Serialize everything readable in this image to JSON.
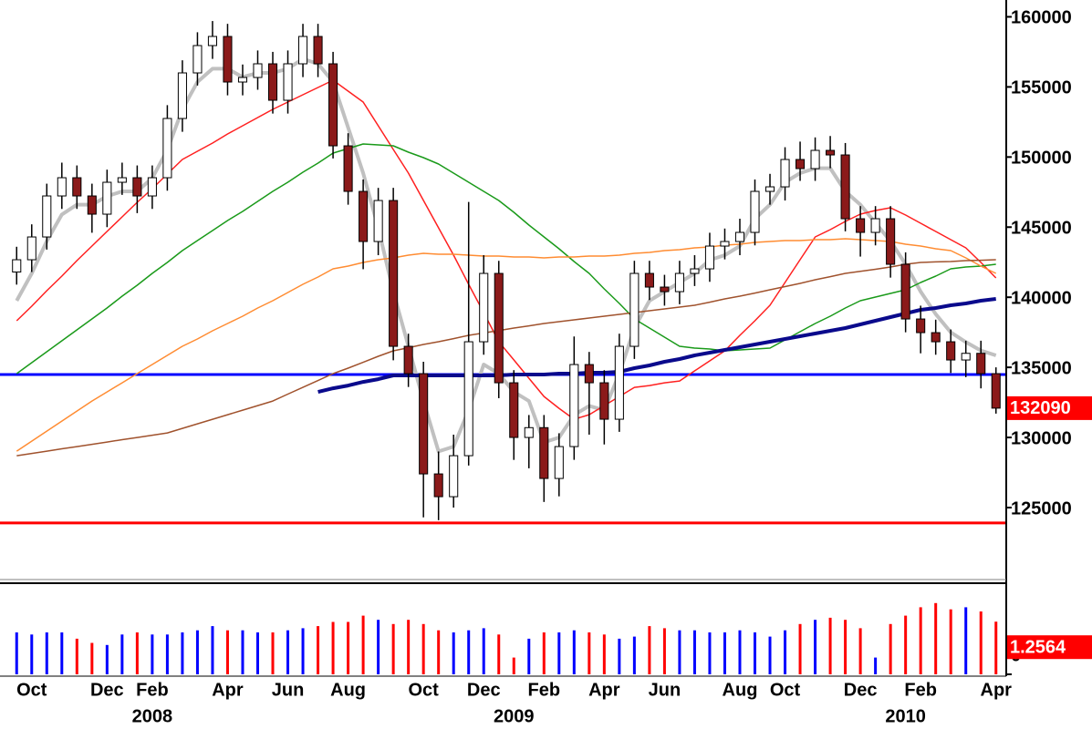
{
  "chart_data": {
    "type": "candlestick",
    "categories": [
      null,
      "Oct",
      null,
      null,
      null,
      null,
      "Dec",
      null,
      null,
      "Feb",
      null,
      null,
      null,
      null,
      "Apr",
      null,
      null,
      null,
      "Jun",
      null,
      null,
      null,
      "Aug",
      null,
      null,
      null,
      null,
      "Oct",
      null,
      null,
      null,
      "Dec",
      null,
      null,
      null,
      "Feb",
      null,
      null,
      null,
      "Apr",
      null,
      null,
      null,
      "Jun",
      null,
      null,
      null,
      null,
      "Aug",
      null,
      null,
      "Oct",
      null,
      null,
      null,
      null,
      "Dec",
      null,
      null,
      null,
      "Feb",
      null,
      null,
      null,
      null,
      "Apr"
    ],
    "year_labels": [
      null,
      null,
      null,
      null,
      null,
      null,
      null,
      null,
      null,
      "2008",
      null,
      null,
      null,
      null,
      null,
      null,
      null,
      null,
      null,
      null,
      null,
      null,
      null,
      null,
      null,
      null,
      null,
      null,
      null,
      null,
      null,
      null,
      null,
      "2009",
      null,
      null,
      null,
      null,
      null,
      null,
      null,
      null,
      null,
      null,
      null,
      null,
      null,
      null,
      null,
      null,
      null,
      null,
      null,
      null,
      null,
      null,
      null,
      null,
      null,
      "2010",
      null,
      null,
      null,
      null,
      null,
      null
    ],
    "open": [
      141800,
      142675,
      144300,
      147225,
      148525,
      147225,
      145925,
      148200,
      148525,
      147225,
      148525,
      152750,
      156000,
      157950,
      158600,
      155350,
      155675,
      156650,
      154050,
      156650,
      158600,
      156650,
      150800,
      147550,
      143975,
      146900,
      136500,
      134550,
      127400,
      125775,
      128700,
      136825,
      141700,
      133900,
      130000,
      130700,
      127075,
      129350,
      135200,
      133900,
      131300,
      136500,
      141700,
      140725,
      140400,
      141700,
      142025,
      143650,
      143975,
      144625,
      147550,
      147875,
      149825,
      149175,
      150475,
      150150,
      145600,
      144625,
      145600,
      142350,
      138450,
      137475,
      136825,
      135525,
      136000,
      134550
    ],
    "high": [
      143600,
      145200,
      148100,
      149600,
      149400,
      148100,
      149100,
      149600,
      149400,
      149400,
      153700,
      156900,
      158900,
      159700,
      159500,
      156600,
      157600,
      157500,
      157600,
      159500,
      159500,
      157500,
      151700,
      148400,
      147800,
      147800,
      137400,
      135400,
      129000,
      130200,
      146800,
      143000,
      142600,
      134800,
      131600,
      131600,
      130300,
      137200,
      136100,
      134800,
      137400,
      142600,
      142600,
      141600,
      142600,
      143000,
      144600,
      144900,
      145600,
      148400,
      148800,
      150700,
      151100,
      151400,
      151500,
      151000,
      146500,
      146500,
      146500,
      143200,
      139400,
      138400,
      137700,
      136900,
      136900,
      135000
    ],
    "low": [
      140900,
      141800,
      143400,
      146300,
      146300,
      144600,
      145000,
      147300,
      146000,
      146300,
      147600,
      151800,
      155100,
      157000,
      154400,
      154400,
      154800,
      153100,
      153100,
      155700,
      155700,
      149900,
      146600,
      142000,
      143000,
      135500,
      133600,
      124300,
      124100,
      125000,
      128000,
      135900,
      132800,
      128400,
      127800,
      125400,
      125800,
      128400,
      130200,
      129500,
      130400,
      135600,
      139800,
      139400,
      139500,
      140800,
      141100,
      142700,
      143000,
      143700,
      146600,
      146900,
      148300,
      148300,
      149200,
      144700,
      142900,
      143700,
      141400,
      137500,
      136000,
      135900,
      134600,
      134300,
      133500,
      131700
    ],
    "close": [
      142675,
      144300,
      147225,
      148525,
      147225,
      145925,
      148200,
      148525,
      147225,
      148525,
      152750,
      156000,
      157950,
      158600,
      155350,
      155675,
      156650,
      154050,
      156650,
      158600,
      156650,
      150800,
      147550,
      143975,
      146900,
      136500,
      134550,
      127400,
      125775,
      128700,
      136825,
      141700,
      133900,
      130000,
      130700,
      127075,
      129350,
      135200,
      133900,
      131300,
      136500,
      141700,
      140725,
      140400,
      141700,
      142025,
      143650,
      143975,
      144625,
      147550,
      147875,
      149825,
      149175,
      150475,
      150150,
      145600,
      144625,
      145600,
      142350,
      138450,
      137475,
      136825,
      135525,
      136000,
      134550,
      132090
    ],
    "up_color": "#ffffff",
    "down_color": "#8b1a1a",
    "wick_color": "#000000",
    "last_color": "#ff0000",
    "lines": [
      {
        "color": "#c0c0c0",
        "emphasis": true,
        "values": [
          139750,
          141700,
          144000,
          145900,
          146600,
          146600,
          147200,
          147550,
          147550,
          148500,
          150500,
          153400,
          155350,
          156300,
          156300,
          155700,
          156000,
          156000,
          156300,
          157000,
          156650,
          155350,
          152100,
          148850,
          144950,
          140400,
          136500,
          132600,
          129000,
          129350,
          131950,
          135200,
          134550,
          133250,
          132600,
          129650,
          130000,
          131600,
          132250,
          131950,
          134550,
          137800,
          139750,
          140400,
          141050,
          141700,
          142650,
          143000,
          143650,
          145600,
          146600,
          148200,
          148850,
          149200,
          149200,
          147550,
          146600,
          145300,
          144000,
          142350,
          140400,
          138800,
          137500,
          136800,
          136200,
          135850
        ]
      },
      {
        "color": "#ff2020",
        "emphasis": false,
        "values": [
          138320,
          139360,
          140465,
          141505,
          142610,
          143650,
          144690,
          145730,
          146770,
          147745,
          148785,
          149825,
          150410,
          150995,
          151645,
          152230,
          152815,
          153400,
          153920,
          154440,
          154960,
          155480,
          154700,
          153920,
          152230,
          150540,
          148850,
          146900,
          144950,
          143000,
          140920,
          138905,
          136825,
          135525,
          134225,
          132925,
          132080,
          131300,
          131625,
          132275,
          132925,
          133575,
          133705,
          133900,
          134030,
          134745,
          135460,
          136175,
          137280,
          138320,
          139425,
          141050,
          142675,
          144300,
          144820,
          145405,
          145925,
          146185,
          146380,
          145860,
          145275,
          144690,
          144105,
          143520,
          142480,
          141375
        ]
      },
      {
        "color": "#1a9a1a",
        "emphasis": false,
        "values": [
          134550,
          135330,
          136110,
          136890,
          137670,
          138450,
          139230,
          140075,
          140855,
          141700,
          142480,
          143325,
          144040,
          144755,
          145470,
          146120,
          146835,
          147550,
          148200,
          148915,
          149565,
          150280,
          150605,
          150930,
          150865,
          150800,
          150345,
          149955,
          149500,
          148850,
          148200,
          147550,
          146900,
          146055,
          145145,
          144300,
          143455,
          142545,
          141700,
          140595,
          139555,
          138450,
          137800,
          137150,
          136500,
          136370,
          136305,
          136175,
          136240,
          136305,
          136370,
          136955,
          137540,
          138125,
          138645,
          139230,
          139750,
          140010,
          140270,
          140530,
          141050,
          141505,
          142025,
          142155,
          142220,
          142350
        ]
      },
      {
        "color": "#ff8c32",
        "emphasis": false,
        "values": [
          129025,
          129740,
          130455,
          131170,
          131885,
          132600,
          133250,
          133900,
          134550,
          135200,
          135850,
          136500,
          137020,
          137605,
          138125,
          138645,
          139230,
          139750,
          140335,
          140920,
          141440,
          142025,
          142220,
          142480,
          142675,
          142805,
          143000,
          143130,
          143065,
          143065,
          143000,
          142935,
          142935,
          142870,
          142870,
          142805,
          142870,
          142870,
          142935,
          142935,
          143000,
          143130,
          143195,
          143325,
          143390,
          143520,
          143585,
          143715,
          143780,
          143910,
          143975,
          144040,
          144040,
          144105,
          144105,
          144170,
          144105,
          144040,
          143975,
          143780,
          143650,
          143455,
          143325,
          142805,
          142220,
          141700
        ]
      },
      {
        "color": "#a0522d",
        "emphasis": false,
        "values": [
          128700,
          128860,
          129025,
          129190,
          129350,
          129510,
          129675,
          129840,
          130000,
          130160,
          130325,
          130650,
          130975,
          131300,
          131625,
          131950,
          132275,
          132600,
          133090,
          133575,
          134060,
          134550,
          134940,
          135360,
          135785,
          136175,
          136400,
          136630,
          136825,
          137050,
          137280,
          137450,
          137620,
          137800,
          137960,
          138125,
          138255,
          138385,
          138515,
          138645,
          138775,
          138905,
          139035,
          139165,
          139295,
          139425,
          139650,
          139880,
          140075,
          140300,
          140530,
          140760,
          140985,
          141245,
          141470,
          141700,
          141855,
          141995,
          142155,
          142350,
          142480,
          142520,
          142545,
          142610,
          142640,
          142675
        ]
      },
      {
        "color": "#0a0a8c",
        "emphasis": true,
        "values": [
          null,
          null,
          null,
          null,
          null,
          null,
          null,
          null,
          null,
          null,
          null,
          null,
          null,
          null,
          null,
          null,
          null,
          null,
          null,
          null,
          133250,
          133510,
          133705,
          133965,
          134160,
          134420,
          134420,
          134420,
          134420,
          134420,
          134420,
          134420,
          134420,
          134485,
          134485,
          134485,
          134550,
          134550,
          134615,
          134615,
          134680,
          134940,
          135135,
          135395,
          135590,
          135850,
          136045,
          136240,
          136435,
          136630,
          136825,
          137020,
          137215,
          137410,
          137605,
          137800,
          138060,
          138320,
          138580,
          138840,
          139100,
          139230,
          139425,
          139555,
          139750,
          139880
        ]
      }
    ],
    "hlines": [
      {
        "value": 134485,
        "color": "#0000ff"
      },
      {
        "value": 123900,
        "color": "#ff0000"
      }
    ],
    "ylim": [
      119800,
      161200
    ],
    "yticks": [
      125000,
      130000,
      135000,
      140000,
      145000,
      150000,
      155000,
      160000
    ],
    "volume": {
      "values": [
        1.0,
        0.95,
        1.0,
        1.0,
        0.85,
        0.75,
        0.7,
        0.95,
        1.0,
        0.95,
        0.95,
        1.0,
        1.05,
        1.15,
        1.05,
        1.05,
        1.0,
        1.0,
        1.05,
        1.1,
        1.15,
        1.25,
        1.25,
        1.4,
        1.3,
        1.2,
        1.3,
        1.2,
        1.05,
        1.0,
        1.05,
        1.1,
        0.95,
        0.4,
        0.85,
        1.0,
        1.0,
        1.05,
        1.0,
        0.95,
        0.85,
        0.9,
        1.15,
        1.1,
        1.05,
        1.05,
        1.0,
        1.0,
        1.05,
        1.0,
        0.9,
        1.05,
        1.2,
        1.3,
        1.35,
        1.3,
        1.1,
        0.4,
        1.2,
        1.4,
        1.6,
        1.7,
        1.55,
        1.6,
        1.5,
        1.2564
      ],
      "ylim": [
        0,
        2
      ],
      "yticks": [
        0
      ],
      "up_color": "#0000ff",
      "down_color": "#ff0000"
    }
  }
}
